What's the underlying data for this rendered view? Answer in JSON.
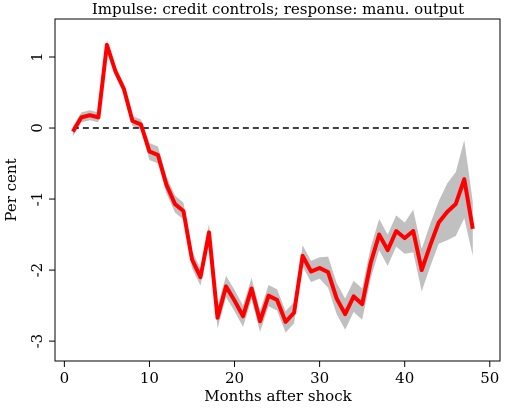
{
  "chart_data": {
    "type": "line",
    "title": "Impulse: credit controls; response: manu. output",
    "xlabel": "Months after shock",
    "ylabel": "Per cent",
    "x": [
      1,
      2,
      3,
      4,
      5,
      6,
      7,
      8,
      9,
      10,
      11,
      12,
      13,
      14,
      15,
      16,
      17,
      18,
      19,
      20,
      21,
      22,
      23,
      24,
      25,
      26,
      27,
      28,
      29,
      30,
      31,
      32,
      33,
      34,
      35,
      36,
      37,
      38,
      39,
      40,
      41,
      42,
      43,
      44,
      45,
      46,
      47,
      48
    ],
    "series": [
      {
        "color": "#ff0000",
        "values": [
          -0.05,
          0.15,
          0.18,
          0.15,
          1.17,
          0.8,
          0.55,
          0.1,
          0.05,
          -0.33,
          -0.38,
          -0.8,
          -1.07,
          -1.17,
          -1.85,
          -2.1,
          -1.47,
          -2.67,
          -2.23,
          -2.43,
          -2.65,
          -2.26,
          -2.72,
          -2.36,
          -2.42,
          -2.73,
          -2.6,
          -1.8,
          -2.02,
          -1.97,
          -2.03,
          -2.4,
          -2.62,
          -2.37,
          -2.48,
          -1.9,
          -1.5,
          -1.72,
          -1.45,
          -1.55,
          -1.45,
          -2.0,
          -1.65,
          -1.33,
          -1.18,
          -1.07,
          -0.72,
          -1.42
        ]
      }
    ],
    "band": {
      "color": "#c0c0c0",
      "upper": [
        0.02,
        0.22,
        0.25,
        0.22,
        1.24,
        0.87,
        0.62,
        0.17,
        0.12,
        -0.21,
        -0.26,
        -0.68,
        -0.95,
        -1.05,
        -1.73,
        -1.98,
        -1.35,
        -2.52,
        -2.08,
        -2.28,
        -2.5,
        -2.11,
        -2.57,
        -2.21,
        -2.27,
        -2.58,
        -2.45,
        -1.65,
        -1.87,
        -1.82,
        -1.81,
        -2.18,
        -2.4,
        -2.15,
        -2.26,
        -1.68,
        -1.28,
        -1.5,
        -1.23,
        -1.33,
        -1.15,
        -1.7,
        -1.35,
        -1.03,
        -0.78,
        -0.62,
        -0.17,
        -1.04
      ],
      "lower": [
        -0.12,
        0.08,
        0.11,
        0.08,
        1.1,
        0.73,
        0.48,
        0.03,
        -0.02,
        -0.45,
        -0.5,
        -0.92,
        -1.19,
        -1.29,
        -1.97,
        -2.22,
        -1.59,
        -2.82,
        -2.38,
        -2.58,
        -2.8,
        -2.41,
        -2.87,
        -2.51,
        -2.57,
        -2.88,
        -2.75,
        -1.95,
        -2.17,
        -2.12,
        -2.25,
        -2.62,
        -2.84,
        -2.59,
        -2.7,
        -2.12,
        -1.72,
        -1.94,
        -1.67,
        -1.77,
        -1.75,
        -2.3,
        -1.95,
        -1.63,
        -1.58,
        -1.52,
        -1.27,
        -1.8
      ]
    },
    "hline": 0,
    "xlim": [
      -1.1,
      51.2
    ],
    "ylim": [
      -3.28,
      1.535
    ],
    "xticks": [
      0,
      10,
      20,
      30,
      40,
      50
    ],
    "yticks": [
      -3,
      -2,
      -1,
      0,
      1
    ]
  }
}
